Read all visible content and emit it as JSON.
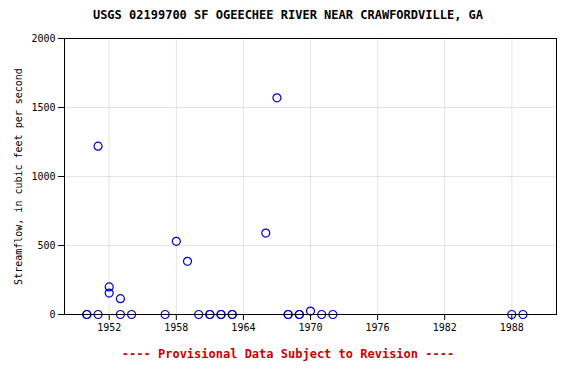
{
  "chart_data": {
    "type": "scatter",
    "title": "USGS 02199700 SF OGEECHEE RIVER NEAR CRAWFORDVILLE, GA",
    "subtitle": "---- Provisional Data Subject to Revision ----",
    "ylabel": "Streamflow, in cubic feet per second",
    "x": [
      1950,
      1950,
      1951,
      1951,
      1952,
      1952,
      1953,
      1953,
      1954,
      1957,
      1958,
      1959,
      1960,
      1961,
      1961,
      1962,
      1962,
      1963,
      1963,
      1966,
      1967,
      1968,
      1968,
      1969,
      1969,
      1970,
      1971,
      1972,
      1988,
      1989
    ],
    "values": [
      0,
      0,
      1220,
      0,
      200,
      155,
      115,
      0,
      0,
      0,
      530,
      385,
      0,
      0,
      0,
      0,
      0,
      0,
      0,
      590,
      1570,
      0,
      0,
      0,
      0,
      25,
      0,
      0,
      0,
      0
    ],
    "xlim": [
      1948,
      1992
    ],
    "ylim": [
      0,
      2000
    ],
    "xticks": [
      1952,
      1958,
      1964,
      1970,
      1976,
      1982,
      1988
    ],
    "yticks": [
      0,
      500,
      1000,
      1500,
      2000
    ],
    "grid": true,
    "color": "#0000cc",
    "marker": "circle"
  }
}
